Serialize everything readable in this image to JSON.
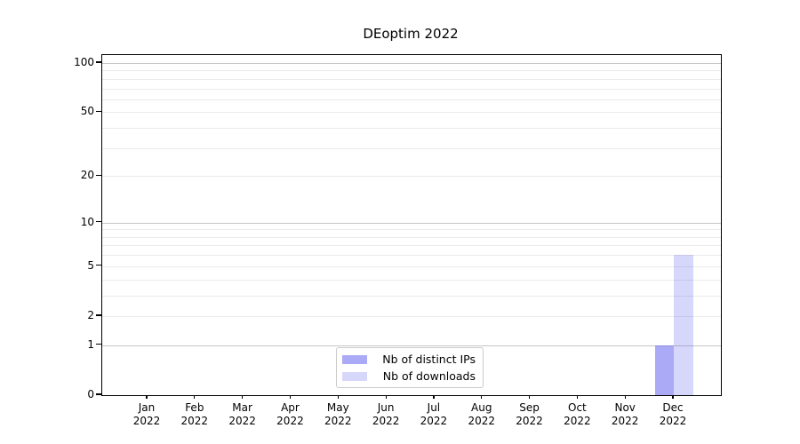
{
  "chart_data": {
    "type": "bar",
    "title": "DEoptim 2022",
    "x_categories": [
      {
        "label": "Jan",
        "sublabel": "2022"
      },
      {
        "label": "Feb",
        "sublabel": "2022"
      },
      {
        "label": "Mar",
        "sublabel": "2022"
      },
      {
        "label": "Apr",
        "sublabel": "2022"
      },
      {
        "label": "May",
        "sublabel": "2022"
      },
      {
        "label": "Jun",
        "sublabel": "2022"
      },
      {
        "label": "Jul",
        "sublabel": "2022"
      },
      {
        "label": "Aug",
        "sublabel": "2022"
      },
      {
        "label": "Sep",
        "sublabel": "2022"
      },
      {
        "label": "Oct",
        "sublabel": "2022"
      },
      {
        "label": "Nov",
        "sublabel": "2022"
      },
      {
        "label": "Dec",
        "sublabel": "2022"
      }
    ],
    "series": [
      {
        "name": "Nb of distinct IPs",
        "color": "rgba(100,100,240,0.55)",
        "values": [
          0,
          0,
          0,
          0,
          0,
          0,
          0,
          0,
          0,
          0,
          0,
          1
        ]
      },
      {
        "name": "Nb of downloads",
        "color": "rgba(100,100,240,0.26)",
        "values": [
          0,
          0,
          0,
          0,
          0,
          0,
          0,
          0,
          0,
          0,
          0,
          6
        ]
      }
    ],
    "y_axis": {
      "scale": "log1p",
      "range": [
        0,
        100
      ],
      "tick_labels": [
        0,
        1,
        2,
        5,
        10,
        20,
        50,
        100
      ],
      "major_gridlines": [
        1,
        10,
        100
      ],
      "minor_gridlines": [
        2,
        3,
        4,
        5,
        6,
        7,
        8,
        9,
        20,
        30,
        40,
        50,
        60,
        70,
        80,
        90
      ]
    },
    "legend": {
      "position": "bottom-center"
    },
    "grid": true
  },
  "colors": {
    "background": "#ffffff",
    "axis": "#000000",
    "major_grid": "#c6c6c6",
    "minor_grid": "#eaeaea",
    "bar_distinct_ips_rendered": "#aaaaf4",
    "bar_downloads_rendered": "#dcdcfa",
    "legend_border": "#cbcbcb"
  }
}
